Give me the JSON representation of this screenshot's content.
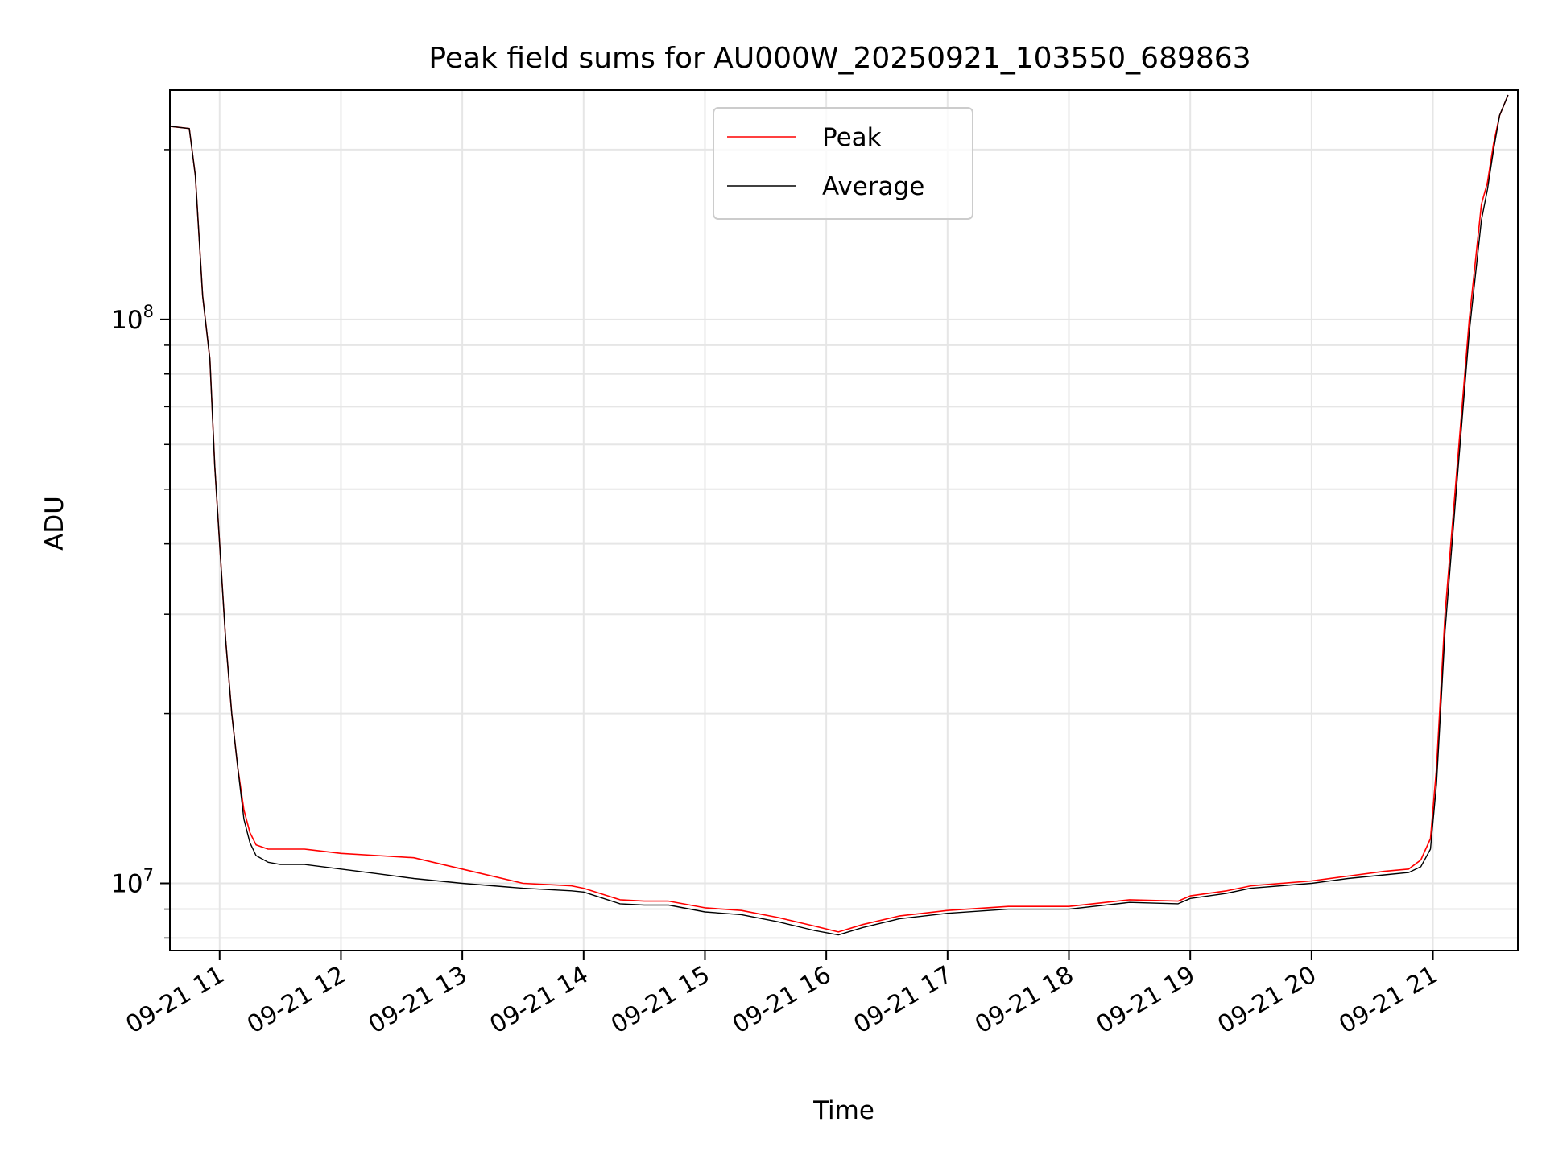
{
  "chart_data": {
    "type": "line",
    "title": "Peak field sums for AU000W_20250921_103550_689863",
    "xlabel": "Time",
    "ylabel": "ADU",
    "yscale": "log",
    "xlim": [
      10.59,
      21.7
    ],
    "ylim": [
      7600000,
      255000000
    ],
    "grid": true,
    "legend_position": "top-center",
    "x_ticks": [
      {
        "value": 11,
        "label": "09-21 11"
      },
      {
        "value": 12,
        "label": "09-21 12"
      },
      {
        "value": 13,
        "label": "09-21 13"
      },
      {
        "value": 14,
        "label": "09-21 14"
      },
      {
        "value": 15,
        "label": "09-21 15"
      },
      {
        "value": 16,
        "label": "09-21 16"
      },
      {
        "value": 17,
        "label": "09-21 17"
      },
      {
        "value": 18,
        "label": "09-21 18"
      },
      {
        "value": 19,
        "label": "09-21 19"
      },
      {
        "value": 20,
        "label": "09-21 20"
      },
      {
        "value": 21,
        "label": "09-21 21"
      }
    ],
    "y_ticks": [
      {
        "value": 10000000,
        "base": "10",
        "exp": "7"
      },
      {
        "value": 100000000,
        "base": "10",
        "exp": "8"
      }
    ],
    "series": [
      {
        "name": "Peak",
        "color": "#ff0000",
        "x": [
          10.59,
          10.75,
          10.8,
          10.86,
          10.92,
          10.96,
          11.0,
          11.05,
          11.1,
          11.15,
          11.2,
          11.25,
          11.3,
          11.4,
          11.5,
          11.7,
          12.0,
          12.3,
          12.6,
          13.0,
          13.5,
          13.9,
          14.0,
          14.3,
          14.5,
          14.7,
          15.0,
          15.3,
          15.6,
          15.9,
          16.1,
          16.3,
          16.6,
          17.0,
          17.5,
          18.0,
          18.5,
          18.9,
          19.0,
          19.3,
          19.5,
          20.0,
          20.3,
          20.6,
          20.8,
          20.9,
          20.98,
          21.03,
          21.1,
          21.2,
          21.3,
          21.4,
          21.45,
          21.5,
          21.55,
          21.62
        ],
        "y": [
          220000000,
          218000000,
          180000000,
          110000000,
          85000000,
          55000000,
          40000000,
          27000000,
          20000000,
          16000000,
          13500000,
          12300000,
          11700000,
          11500000,
          11500000,
          11500000,
          11300000,
          11200000,
          11100000,
          10600000,
          10000000,
          9900000,
          9800000,
          9350000,
          9300000,
          9300000,
          9050000,
          8950000,
          8700000,
          8400000,
          8200000,
          8450000,
          8750000,
          8950000,
          9100000,
          9100000,
          9350000,
          9300000,
          9500000,
          9700000,
          9900000,
          10100000,
          10300000,
          10500000,
          10600000,
          11000000,
          12000000,
          16000000,
          30000000,
          55000000,
          100000000,
          160000000,
          175000000,
          205000000,
          230000000,
          250000000
        ]
      },
      {
        "name": "Average",
        "color": "#000000",
        "x": [
          10.59,
          10.75,
          10.8,
          10.86,
          10.92,
          10.96,
          11.0,
          11.05,
          11.1,
          11.15,
          11.2,
          11.25,
          11.3,
          11.4,
          11.5,
          11.7,
          12.0,
          12.3,
          12.6,
          13.0,
          13.5,
          13.9,
          14.0,
          14.3,
          14.5,
          14.7,
          15.0,
          15.3,
          15.6,
          15.9,
          16.1,
          16.3,
          16.6,
          17.0,
          17.5,
          18.0,
          18.5,
          18.9,
          19.0,
          19.3,
          19.5,
          20.0,
          20.3,
          20.6,
          20.8,
          20.9,
          20.98,
          21.03,
          21.1,
          21.2,
          21.3,
          21.4,
          21.45,
          21.5,
          21.55,
          21.62
        ],
        "y": [
          220000000,
          218000000,
          180000000,
          110000000,
          85000000,
          55000000,
          40000000,
          27000000,
          20000000,
          16000000,
          13000000,
          11800000,
          11200000,
          10900000,
          10800000,
          10800000,
          10600000,
          10400000,
          10200000,
          10000000,
          9800000,
          9700000,
          9650000,
          9200000,
          9150000,
          9150000,
          8900000,
          8800000,
          8550000,
          8250000,
          8100000,
          8350000,
          8650000,
          8850000,
          9000000,
          9000000,
          9250000,
          9200000,
          9400000,
          9600000,
          9800000,
          10000000,
          10200000,
          10350000,
          10450000,
          10700000,
          11500000,
          15000000,
          28000000,
          52000000,
          95000000,
          150000000,
          170000000,
          200000000,
          230000000,
          250000000
        ]
      }
    ]
  }
}
